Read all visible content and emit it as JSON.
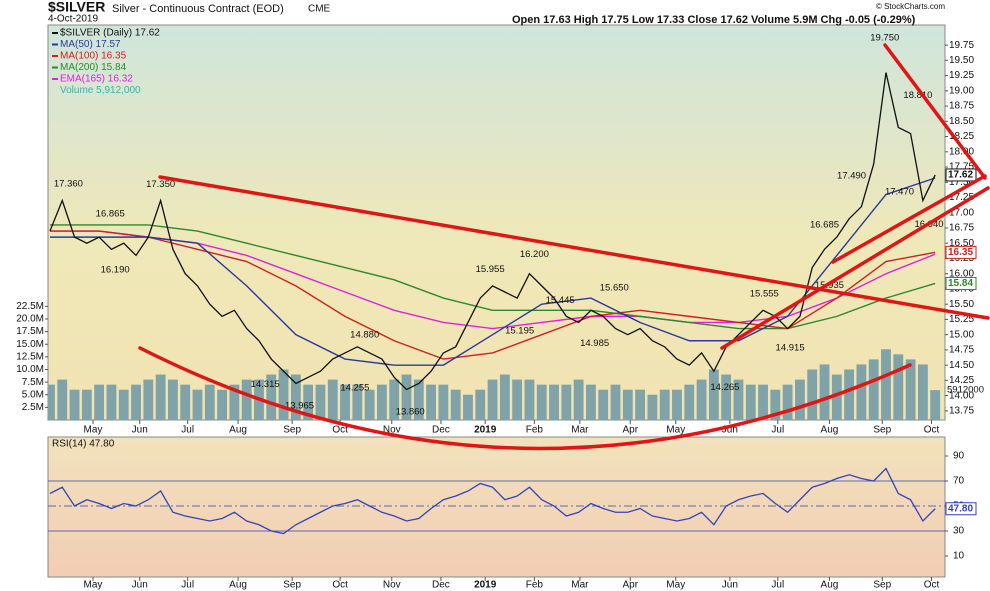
{
  "header": {
    "symbol": "$SILVER",
    "title": "Silver - Continuous Contract (EOD)",
    "exchange": "CME",
    "date": "4-Oct-2019",
    "ohlc": "Open 17.63 High 17.75 Low 17.33 Close 17.62 Volume 5.9M Chg -0.05 (-0.29%)",
    "watermark": "© StockCharts.com"
  },
  "chart_data": [
    {
      "type": "line",
      "x": [
        0,
        1,
        2,
        3,
        4,
        5,
        6,
        7,
        8,
        9,
        10,
        11,
        12,
        13,
        14,
        15,
        16,
        17,
        18,
        19,
        20,
        21,
        22,
        23,
        24,
        25,
        26,
        27,
        28,
        29,
        30,
        31,
        32,
        33,
        34,
        35,
        36,
        37,
        38,
        39,
        40,
        41,
        42,
        43,
        44,
        45,
        46,
        47,
        48,
        49,
        50,
        51,
        52,
        53,
        54,
        55,
        56,
        57,
        58,
        59,
        60,
        61,
        62,
        63,
        64,
        65,
        66,
        67,
        68,
        69,
        70,
        71,
        72
      ],
      "xlim": [
        -0.16,
        72.8
      ],
      "xticks": [
        {
          "value": 3.5,
          "label": "May"
        },
        {
          "value": 7.3,
          "label": "Jun"
        },
        {
          "value": 11.2,
          "label": "Jul"
        },
        {
          "value": 15.3,
          "label": "Aug"
        },
        {
          "value": 19.7,
          "label": "Sep"
        },
        {
          "value": 23.6,
          "label": "Oct"
        },
        {
          "value": 27.8,
          "label": "Nov"
        },
        {
          "value": 31.8,
          "label": "Dec"
        },
        {
          "value": 35.4,
          "label": "2019"
        },
        {
          "value": 39.4,
          "label": "Feb"
        },
        {
          "value": 43.1,
          "label": "Mar"
        },
        {
          "value": 47.2,
          "label": "Apr"
        },
        {
          "value": 50.9,
          "label": "May"
        },
        {
          "value": 55.3,
          "label": "Jun"
        },
        {
          "value": 59.2,
          "label": "Jul"
        },
        {
          "value": 63.4,
          "label": "Aug"
        },
        {
          "value": 67.7,
          "label": "Sep"
        },
        {
          "value": 71.7,
          "label": "Oct"
        }
      ],
      "ylim": [
        13.6,
        20.08
      ],
      "yticks": [
        13.75,
        {
          "value": 14,
          "label": "14.00"
        },
        14.25,
        {
          "value": 14.5,
          "label": "14.50"
        },
        14.75,
        {
          "value": 15,
          "label": "15.00"
        },
        15.25,
        {
          "value": 15.5,
          "label": "15.50"
        },
        15.75,
        {
          "value": 16,
          "label": "16.00"
        },
        16.25,
        {
          "value": 16.5,
          "label": "16.50"
        },
        16.75,
        {
          "value": 17,
          "label": "17.00"
        },
        17.25,
        {
          "value": 17.5,
          "label": "17.50"
        },
        17.75,
        {
          "value": 18,
          "label": "18.00"
        },
        18.25,
        {
          "value": 18.5,
          "label": "18.50"
        },
        18.75,
        {
          "value": 19,
          "label": "19.00"
        },
        19.25,
        {
          "value": 19.5,
          "label": "19.50"
        },
        19.75
      ],
      "y2lim": [
        0,
        78.2
      ],
      "y2ticks": [
        {
          "value": 2.5,
          "label": "2.5M"
        },
        {
          "value": 5,
          "label": "5.0M"
        },
        {
          "value": 7.5,
          "label": "7.5M"
        },
        {
          "value": 10,
          "label": "10.0M"
        },
        {
          "value": 12.5,
          "label": "12.5M"
        },
        {
          "value": 15,
          "label": "15.0M"
        },
        {
          "value": 17.5,
          "label": "17.5M"
        },
        {
          "value": 20,
          "label": "20.0M"
        },
        {
          "value": 22.5,
          "label": "22.5M"
        }
      ],
      "series": [
        {
          "name": "$SILVER (Daily) 17.62",
          "color": "#111111",
          "show_tag": true,
          "values": [
            16.7,
            17.2,
            16.6,
            16.5,
            16.6,
            16.4,
            16.5,
            16.3,
            16.6,
            17.2,
            16.4,
            16.0,
            15.8,
            15.5,
            15.3,
            15.4,
            15.1,
            14.9,
            14.6,
            14.4,
            14.2,
            14.3,
            14.4,
            14.6,
            14.7,
            14.8,
            14.7,
            14.6,
            14.3,
            14.1,
            14.2,
            14.4,
            14.7,
            14.8,
            15.2,
            15.6,
            15.8,
            15.7,
            15.6,
            16.0,
            15.8,
            15.6,
            15.3,
            15.2,
            15.4,
            15.3,
            15.1,
            15.0,
            15.1,
            14.9,
            14.8,
            14.6,
            14.5,
            14.7,
            14.4,
            14.8,
            15.0,
            15.2,
            15.4,
            15.3,
            15.1,
            15.3,
            16.1,
            16.4,
            16.6,
            16.9,
            17.1,
            17.8,
            19.3,
            18.4,
            18.3,
            17.2,
            17.62
          ]
        },
        {
          "name": "MA(50) 17.57",
          "color": "#2b3a9a",
          "show_tag": false,
          "x": [
            0,
            4,
            8,
            12,
            16,
            20,
            24,
            28,
            32,
            36,
            40,
            44,
            48,
            52,
            56,
            60,
            64,
            68,
            72
          ],
          "values": [
            16.6,
            16.6,
            16.6,
            16.5,
            15.8,
            15.0,
            14.6,
            14.5,
            14.5,
            15.0,
            15.5,
            15.6,
            15.2,
            14.9,
            14.9,
            15.3,
            16.3,
            17.3,
            17.57
          ]
        },
        {
          "name": "MA(100) 16.35",
          "color": "#d02020",
          "show_tag": true,
          "x": [
            0,
            4,
            8,
            12,
            16,
            20,
            24,
            28,
            32,
            36,
            40,
            44,
            48,
            52,
            56,
            60,
            64,
            68,
            72
          ],
          "values": [
            16.7,
            16.7,
            16.6,
            16.4,
            16.2,
            15.8,
            15.3,
            14.9,
            14.6,
            14.7,
            15.0,
            15.3,
            15.4,
            15.3,
            15.2,
            15.1,
            15.6,
            16.2,
            16.35
          ]
        },
        {
          "name": "MA(200) 15.84",
          "color": "#2a8a2a",
          "show_tag": true,
          "x": [
            0,
            4,
            8,
            12,
            16,
            20,
            24,
            28,
            32,
            36,
            40,
            44,
            48,
            52,
            56,
            60,
            64,
            68,
            72
          ],
          "values": [
            16.8,
            16.8,
            16.8,
            16.7,
            16.5,
            16.3,
            16.1,
            15.9,
            15.6,
            15.4,
            15.4,
            15.4,
            15.3,
            15.2,
            15.1,
            15.1,
            15.3,
            15.6,
            15.84
          ]
        },
        {
          "name": "EMA(165) 16.32",
          "color": "#e020e0",
          "show_tag": false,
          "x": [
            0,
            4,
            8,
            12,
            16,
            20,
            24,
            28,
            32,
            36,
            40,
            44,
            48,
            52,
            56,
            60,
            64,
            68,
            72
          ],
          "values": [
            16.7,
            16.7,
            16.6,
            16.5,
            16.3,
            16.0,
            15.7,
            15.4,
            15.2,
            15.1,
            15.2,
            15.3,
            15.3,
            15.2,
            15.2,
            15.3,
            15.6,
            16.0,
            16.32
          ]
        }
      ],
      "volume": {
        "name": "Volume 5,912,000",
        "color": "#7fa3a8",
        "legend_color": "#33b5b5",
        "axis": "y2",
        "tag": {
          "value": 5.912,
          "label": "5912000"
        },
        "values": [
          7,
          8,
          6,
          6,
          7,
          7,
          6,
          7,
          8,
          9,
          8,
          7,
          6,
          7,
          6,
          7,
          8,
          8,
          9,
          10,
          9,
          7,
          7,
          8,
          7,
          7,
          6,
          7,
          8,
          9,
          8,
          7,
          7,
          6,
          5,
          6,
          8,
          9,
          8,
          8,
          7,
          7,
          7,
          8,
          7,
          6,
          7,
          6,
          6,
          5,
          6,
          6,
          7,
          8,
          10,
          9,
          8,
          7,
          7,
          6,
          7,
          8,
          10,
          11,
          9,
          10,
          11,
          12,
          14,
          13,
          12,
          11,
          5.912
        ]
      },
      "annotations": [
        {
          "x": 1.5,
          "value": 17.36,
          "label": "17.360"
        },
        {
          "x": 9,
          "value": 17.35,
          "label": "17.350"
        },
        {
          "x": 4.9,
          "value": 16.865,
          "label": "16.865"
        },
        {
          "x": 5.3,
          "value": 16.19,
          "label": "16.190"
        },
        {
          "x": 17.5,
          "value": 14.315,
          "label": "14.315"
        },
        {
          "x": 20.3,
          "value": 13.965,
          "label": "13.965"
        },
        {
          "x": 24.8,
          "value": 14.255,
          "label": "14.255"
        },
        {
          "x": 25.6,
          "value": 14.88,
          "label": "14.880"
        },
        {
          "x": 29.3,
          "value": 13.86,
          "label": "13.860"
        },
        {
          "x": 35.8,
          "value": 15.955,
          "label": "15.955"
        },
        {
          "x": 39.4,
          "value": 16.2,
          "label": "16.200"
        },
        {
          "x": 38.2,
          "value": 15.195,
          "label": "15.195"
        },
        {
          "x": 41.5,
          "value": 15.445,
          "label": "15.445"
        },
        {
          "x": 44.3,
          "value": 14.985,
          "label": "14.985"
        },
        {
          "x": 45.9,
          "value": 15.65,
          "label": "15.650"
        },
        {
          "x": 54.9,
          "value": 14.265,
          "label": "14.265"
        },
        {
          "x": 58.1,
          "value": 15.555,
          "label": "15.555"
        },
        {
          "x": 60.2,
          "value": 14.915,
          "label": "14.915"
        },
        {
          "x": 63.4,
          "value": 15.935,
          "label": "15.935"
        },
        {
          "x": 63,
          "value": 16.685,
          "label": "16.685"
        },
        {
          "x": 65.2,
          "value": 17.49,
          "label": "17.490"
        },
        {
          "x": 67.9,
          "value": 19.75,
          "label": "19.750"
        },
        {
          "x": 70.6,
          "value": 18.81,
          "label": "18.810"
        },
        {
          "x": 69.1,
          "value": 17.47,
          "label": "17.470"
        },
        {
          "x": 71.5,
          "value": 16.94,
          "label": "16.940"
        }
      ]
    },
    {
      "type": "line",
      "ylim": [
        -6.8,
        105.2
      ],
      "yticks": [
        10,
        30,
        50,
        70,
        90
      ],
      "levels": [
        {
          "value": 70,
          "style": "solid"
        },
        {
          "value": 50,
          "style": "dashdot"
        },
        {
          "value": 30,
          "style": "solid"
        }
      ],
      "series": [
        {
          "name": "RSI(14) 47.80",
          "color": "#3344bb",
          "tag": {
            "value": 47.8,
            "label": "47.80"
          },
          "values": [
            60,
            65,
            50,
            55,
            52,
            48,
            52,
            50,
            55,
            62,
            45,
            42,
            40,
            38,
            40,
            45,
            38,
            35,
            30,
            28,
            35,
            40,
            45,
            50,
            52,
            55,
            50,
            45,
            42,
            38,
            40,
            48,
            55,
            58,
            62,
            68,
            65,
            55,
            58,
            65,
            55,
            50,
            42,
            45,
            52,
            48,
            45,
            45,
            48,
            42,
            40,
            38,
            40,
            45,
            35,
            50,
            55,
            58,
            60,
            52,
            45,
            55,
            65,
            68,
            72,
            75,
            72,
            70,
            80,
            60,
            55,
            38,
            47.8
          ]
        }
      ]
    }
  ]
}
